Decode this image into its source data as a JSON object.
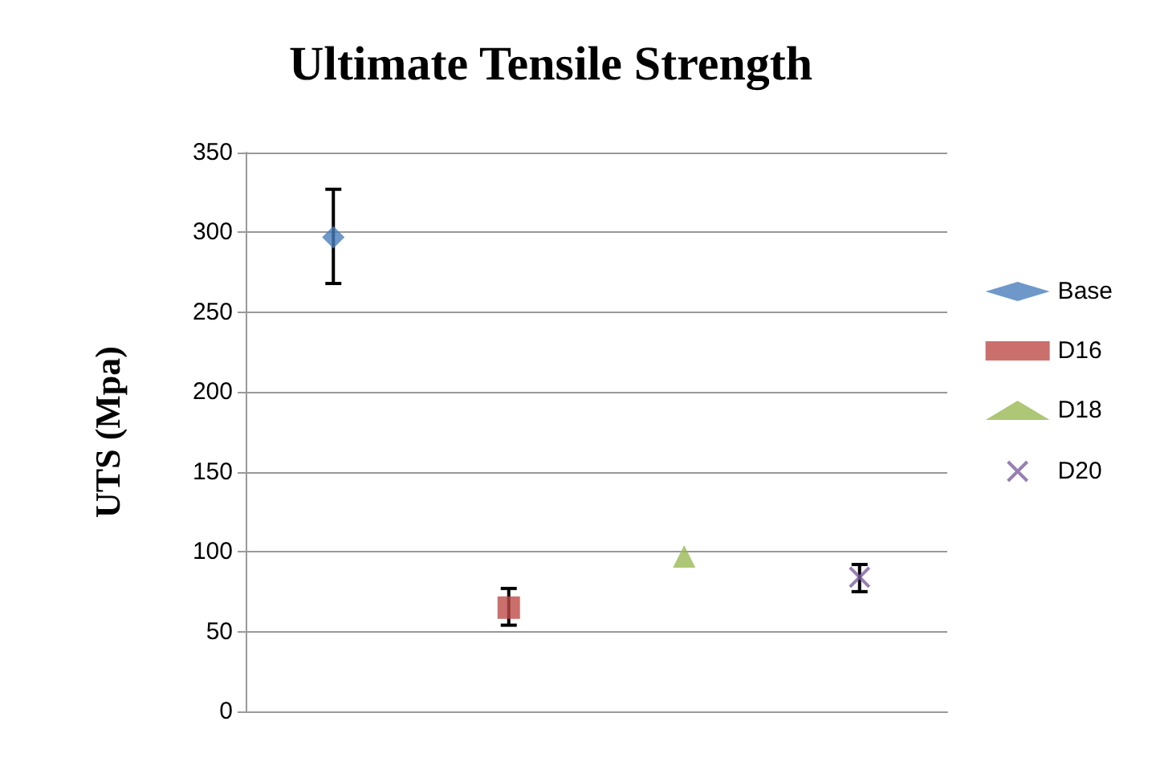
{
  "chart_data": {
    "type": "scatter",
    "title": "Ultimate Tensile Strength",
    "ylabel": "UTS (Mpa)",
    "categories": [
      null,
      null,
      null,
      null
    ],
    "series": [
      {
        "name": "Base",
        "color": "#4a7ebb",
        "marker": "diamond",
        "values": [
          297,
          null,
          null,
          null
        ],
        "errors": [
          [
            268,
            327
          ],
          null,
          null,
          null
        ]
      },
      {
        "name": "D16",
        "color": "#be4b48",
        "marker": "square",
        "values": [
          null,
          65,
          null,
          null
        ],
        "errors": [
          null,
          [
            54,
            77
          ],
          null,
          null
        ]
      },
      {
        "name": "D18",
        "color": "#98b954",
        "marker": "triangle",
        "values": [
          null,
          null,
          97,
          null
        ]
      },
      {
        "name": "D20",
        "color": "#7d60a0",
        "marker": "cross",
        "values": [
          null,
          null,
          null,
          84
        ],
        "errors": [
          null,
          null,
          null,
          [
            75,
            92
          ]
        ]
      }
    ],
    "ylim": [
      0,
      350
    ],
    "yticks": [
      0,
      50,
      100,
      150,
      200,
      250,
      300,
      350
    ],
    "grid": "y",
    "legend": "right"
  }
}
